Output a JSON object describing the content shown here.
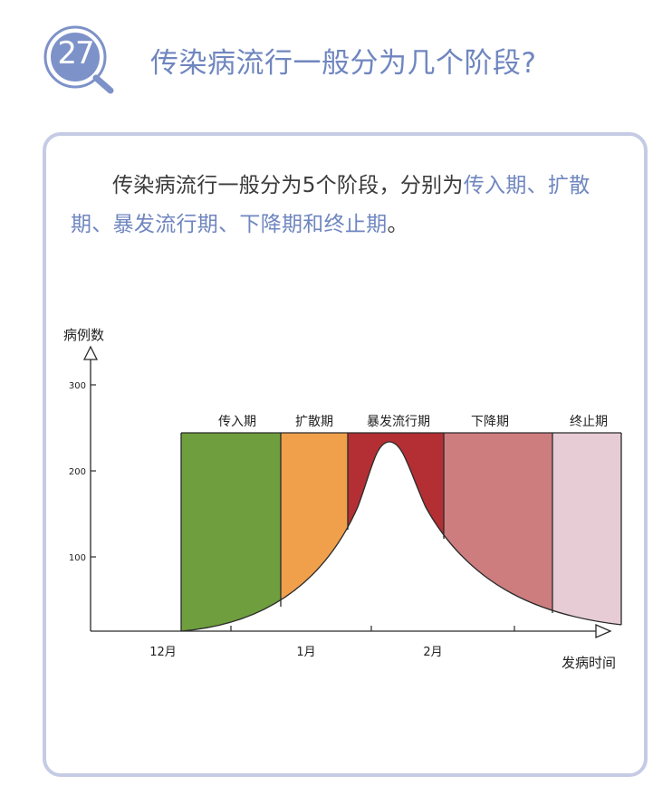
{
  "header": {
    "badge_number": "27",
    "title": "传染病流行一般分为几个阶段?"
  },
  "intro": {
    "text_before": "传染病流行一般分为5个阶段，分别为",
    "stage_list_part1": "传入期、扩散",
    "stage_list_part2": "期、暴发流行期、下降期和终止期",
    "text_after": "。"
  },
  "diagram": {
    "y_axis_label": "病例数",
    "x_axis_label": "发病时间",
    "y_ticks": [
      "300",
      "200",
      "100"
    ],
    "x_ticks": [
      "12月",
      "1月",
      "2月"
    ],
    "stages": [
      {
        "label": "传入期",
        "color": "#6e9e3d"
      },
      {
        "label": "扩散期",
        "color": "#f0a04b"
      },
      {
        "label": "暴发流行期",
        "color": "#b42f33"
      },
      {
        "label": "下降期",
        "color": "#cd7d7e"
      },
      {
        "label": "终止期",
        "color": "#e7ccd5"
      }
    ]
  },
  "colors": {
    "accent": "#6f86bf",
    "card_border": "#c6cbe5"
  }
}
